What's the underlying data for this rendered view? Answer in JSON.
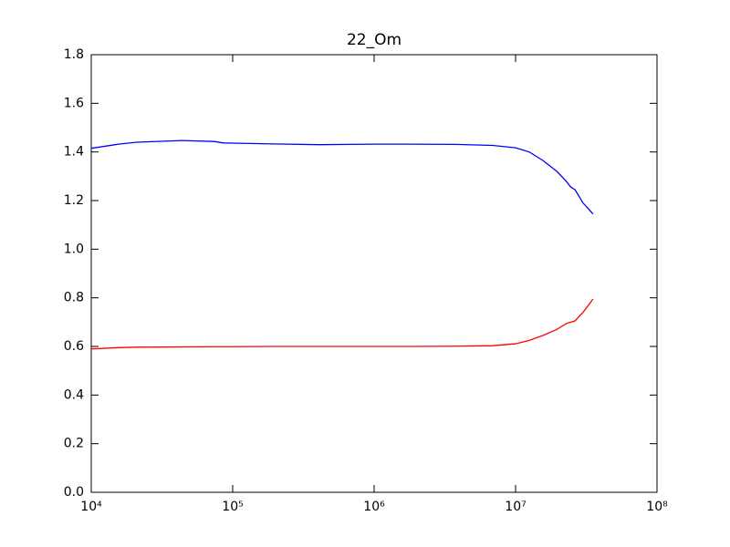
{
  "chart_data": {
    "type": "line",
    "title": "22_Om",
    "log_x": true,
    "xlim": [
      10000,
      100000000
    ],
    "xticks": [
      {
        "value": 10000,
        "label": "10⁴"
      },
      {
        "value": 100000,
        "label": "10⁵"
      },
      {
        "value": 1000000,
        "label": "10⁶"
      },
      {
        "value": 10000000,
        "label": "10⁷"
      },
      {
        "value": 100000000,
        "label": "10⁸"
      }
    ],
    "ylim": [
      0,
      1.8
    ],
    "yticks": [
      {
        "value": 0,
        "label": "0.0"
      },
      0.2,
      0.4,
      0.6,
      0.8,
      {
        "value": 1,
        "label": "1.0"
      },
      1.2,
      1.4,
      1.6,
      1.8
    ],
    "x": [
      10000,
      15600,
      21000,
      44000,
      74000,
      86000,
      195000,
      410000,
      1000000,
      1800000,
      3800000,
      6900000,
      10000000,
      12500000,
      15600000,
      19600000,
      22800000,
      24600000,
      26300000,
      30000000,
      35300000
    ],
    "series": [
      {
        "color": "#0000ff",
        "values": [
          1.415,
          1.432,
          1.44,
          1.447,
          1.443,
          1.437,
          1.433,
          1.43,
          1.432,
          1.432,
          1.431,
          1.427,
          1.417,
          1.4,
          1.365,
          1.32,
          1.28,
          1.255,
          1.245,
          1.19,
          1.145
        ]
      },
      {
        "color": "#ff0000",
        "values": [
          0.59,
          0.595,
          0.597,
          0.598,
          0.599,
          0.599,
          0.6,
          0.6,
          0.6,
          0.6,
          0.601,
          0.603,
          0.611,
          0.625,
          0.645,
          0.67,
          0.694,
          0.7,
          0.705,
          0.74,
          0.795
        ]
      }
    ]
  }
}
